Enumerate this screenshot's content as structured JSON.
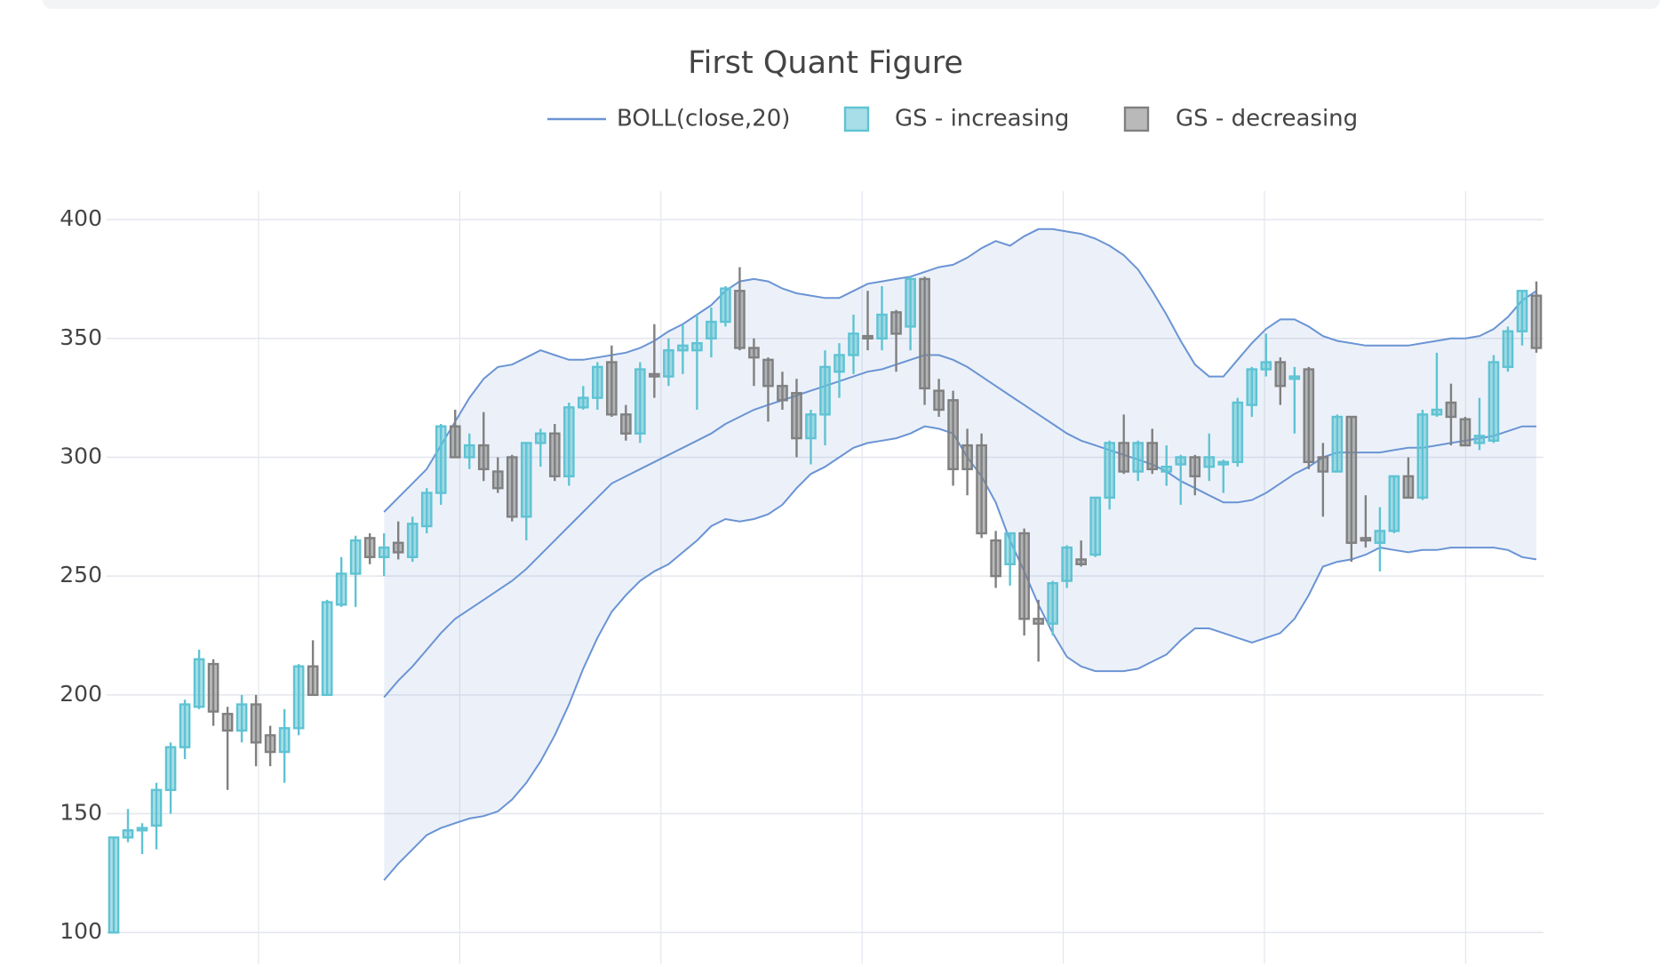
{
  "chart_data": {
    "type": "candlestick",
    "title": "First Quant Figure",
    "categories": [
      null,
      null,
      null,
      null,
      null,
      null,
      null,
      null,
      null,
      null,
      null,
      null,
      null,
      null,
      null,
      null,
      null,
      null,
      null,
      null,
      null,
      null,
      null,
      null,
      null,
      null,
      null,
      null,
      null,
      null,
      null,
      null,
      null,
      null,
      null,
      null,
      null,
      null,
      null,
      null,
      null,
      null,
      null,
      null,
      null,
      null,
      null,
      null,
      null,
      null,
      null,
      null,
      null,
      null,
      null,
      null,
      null,
      null,
      null,
      null,
      null,
      null,
      null,
      null,
      null,
      null,
      null,
      null,
      null,
      null,
      null,
      null,
      null,
      null,
      null,
      null,
      null,
      null,
      null,
      null,
      null,
      null,
      null,
      null,
      null,
      null,
      null,
      null,
      null,
      null,
      null,
      null,
      null,
      null,
      null,
      null,
      null,
      null,
      null,
      null,
      null
    ],
    "open": [
      100,
      140,
      143,
      145,
      160,
      178,
      195,
      213,
      192,
      185,
      196,
      183,
      176,
      186,
      212,
      200,
      238,
      251,
      266,
      258,
      264,
      258,
      271,
      285,
      313,
      300,
      305,
      294,
      300,
      275,
      306,
      310,
      292,
      321,
      325,
      340,
      318,
      310,
      335,
      334,
      345,
      345,
      350,
      357,
      370,
      346,
      341,
      330,
      327,
      308,
      318,
      336,
      343,
      351,
      350,
      361,
      355,
      375,
      328,
      324,
      305,
      305,
      265,
      255,
      268,
      232,
      230,
      248,
      257,
      259,
      283,
      306,
      294,
      306,
      294,
      297,
      300,
      296,
      297,
      298,
      322,
      337,
      340,
      333,
      337,
      300,
      294,
      317,
      266,
      264,
      269,
      292,
      283,
      318,
      323,
      316,
      306,
      307,
      338,
      353,
      368
    ],
    "high": [
      140,
      152,
      146,
      163,
      180,
      198,
      219,
      215,
      195,
      200,
      200,
      187,
      194,
      213,
      223,
      240,
      258,
      267,
      268,
      268,
      273,
      275,
      287,
      314,
      320,
      310,
      319,
      300,
      301,
      306,
      312,
      314,
      323,
      330,
      340,
      347,
      322,
      340,
      356,
      350,
      356,
      360,
      363,
      372,
      380,
      350,
      342,
      336,
      333,
      320,
      345,
      348,
      360,
      370,
      372,
      362,
      376,
      376,
      333,
      328,
      312,
      310,
      269,
      268,
      270,
      240,
      248,
      263,
      265,
      283,
      307,
      318,
      307,
      312,
      305,
      301,
      301,
      310,
      299,
      325,
      338,
      352,
      342,
      338,
      338,
      306,
      318,
      317,
      284,
      279,
      292,
      300,
      320,
      344,
      331,
      317,
      325,
      343,
      355,
      370,
      374
    ],
    "low": [
      100,
      138,
      133,
      135,
      150,
      173,
      194,
      187,
      160,
      180,
      170,
      170,
      163,
      183,
      200,
      200,
      237,
      237,
      255,
      250,
      257,
      256,
      268,
      280,
      300,
      295,
      290,
      285,
      273,
      265,
      296,
      290,
      288,
      320,
      320,
      317,
      307,
      306,
      325,
      330,
      335,
      320,
      342,
      355,
      345,
      330,
      315,
      320,
      300,
      297,
      305,
      325,
      335,
      345,
      345,
      336,
      345,
      322,
      317,
      288,
      284,
      266,
      245,
      246,
      225,
      214,
      225,
      245,
      254,
      258,
      278,
      293,
      290,
      293,
      288,
      280,
      284,
      290,
      285,
      296,
      317,
      334,
      322,
      310,
      295,
      275,
      294,
      256,
      262,
      252,
      268,
      283,
      282,
      317,
      305,
      305,
      303,
      306,
      336,
      347,
      344
    ],
    "close": [
      140,
      143,
      144,
      160,
      178,
      196,
      215,
      193,
      185,
      196,
      180,
      176,
      186,
      212,
      200,
      239,
      251,
      265,
      258,
      262,
      260,
      272,
      285,
      313,
      300,
      305,
      295,
      287,
      275,
      306,
      310,
      292,
      321,
      325,
      338,
      318,
      310,
      337,
      334,
      345,
      347,
      348,
      357,
      371,
      346,
      342,
      330,
      324,
      308,
      318,
      338,
      343,
      352,
      350,
      360,
      352,
      375,
      329,
      320,
      295,
      295,
      268,
      250,
      268,
      232,
      230,
      247,
      262,
      255,
      283,
      306,
      294,
      306,
      295,
      296,
      300,
      292,
      300,
      298,
      323,
      337,
      340,
      330,
      334,
      298,
      294,
      317,
      264,
      265,
      269,
      292,
      283,
      318,
      320,
      317,
      305,
      309,
      340,
      353,
      370,
      346
    ],
    "increasing": {
      "name": "GS - increasing",
      "color": "#5fc3d3"
    },
    "decreasing": {
      "name": "GS - decreasing",
      "color": "#808080"
    },
    "bollinger": {
      "name": "BOLL(close,20)",
      "color": "#6a94d4",
      "middle": [
        null,
        null,
        null,
        null,
        null,
        null,
        null,
        null,
        null,
        null,
        null,
        null,
        null,
        null,
        null,
        null,
        null,
        null,
        null,
        199,
        206,
        212,
        219,
        226,
        232,
        236,
        240,
        244,
        248,
        253,
        259,
        265,
        271,
        277,
        283,
        289,
        292,
        295,
        298,
        301,
        304,
        307,
        310,
        314,
        317,
        320,
        322,
        324,
        326,
        328,
        330,
        332,
        334,
        336,
        337,
        339,
        341,
        343,
        343,
        341,
        338,
        334,
        330,
        326,
        322,
        318,
        314,
        310,
        307,
        305,
        303,
        301,
        299,
        297,
        294,
        290,
        287,
        284,
        281,
        281,
        282,
        285,
        289,
        293,
        296,
        300,
        302,
        302,
        302,
        302,
        303,
        304,
        304,
        305,
        306,
        307,
        308,
        309,
        311,
        313,
        313
      ],
      "upper": [
        null,
        null,
        null,
        null,
        null,
        null,
        null,
        null,
        null,
        null,
        null,
        null,
        null,
        null,
        null,
        null,
        null,
        null,
        null,
        277,
        283,
        289,
        295,
        305,
        315,
        325,
        333,
        338,
        339,
        342,
        345,
        343,
        341,
        341,
        342,
        343,
        344,
        346,
        349,
        353,
        356,
        360,
        364,
        370,
        374,
        375,
        374,
        371,
        369,
        368,
        367,
        367,
        370,
        373,
        374,
        375,
        376,
        378,
        380,
        381,
        384,
        388,
        391,
        389,
        393,
        396,
        396,
        395,
        394,
        392,
        389,
        385,
        379,
        370,
        360,
        349,
        339,
        334,
        334,
        341,
        348,
        354,
        358,
        358,
        355,
        351,
        349,
        348,
        347,
        347,
        347,
        347,
        348,
        349,
        350,
        350,
        351,
        354,
        359,
        366,
        370
      ],
      "lower": [
        null,
        null,
        null,
        null,
        null,
        null,
        null,
        null,
        null,
        null,
        null,
        null,
        null,
        null,
        null,
        null,
        null,
        null,
        null,
        122,
        129,
        135,
        141,
        144,
        146,
        148,
        149,
        151,
        156,
        163,
        172,
        183,
        196,
        211,
        224,
        235,
        242,
        248,
        252,
        255,
        260,
        265,
        271,
        274,
        273,
        274,
        276,
        280,
        287,
        293,
        296,
        300,
        304,
        306,
        307,
        308,
        310,
        313,
        312,
        310,
        300,
        292,
        281,
        265,
        252,
        238,
        226,
        216,
        212,
        210,
        210,
        210,
        211,
        214,
        217,
        223,
        228,
        228,
        226,
        224,
        222,
        224,
        226,
        232,
        242,
        254,
        256,
        257,
        259,
        262,
        261,
        260,
        261,
        261,
        262,
        262,
        262,
        262,
        261,
        258,
        257
      ]
    },
    "ylim": [
      87,
      412
    ],
    "yticks": [
      100,
      150,
      200,
      250,
      300,
      350,
      400
    ],
    "grid": true
  }
}
